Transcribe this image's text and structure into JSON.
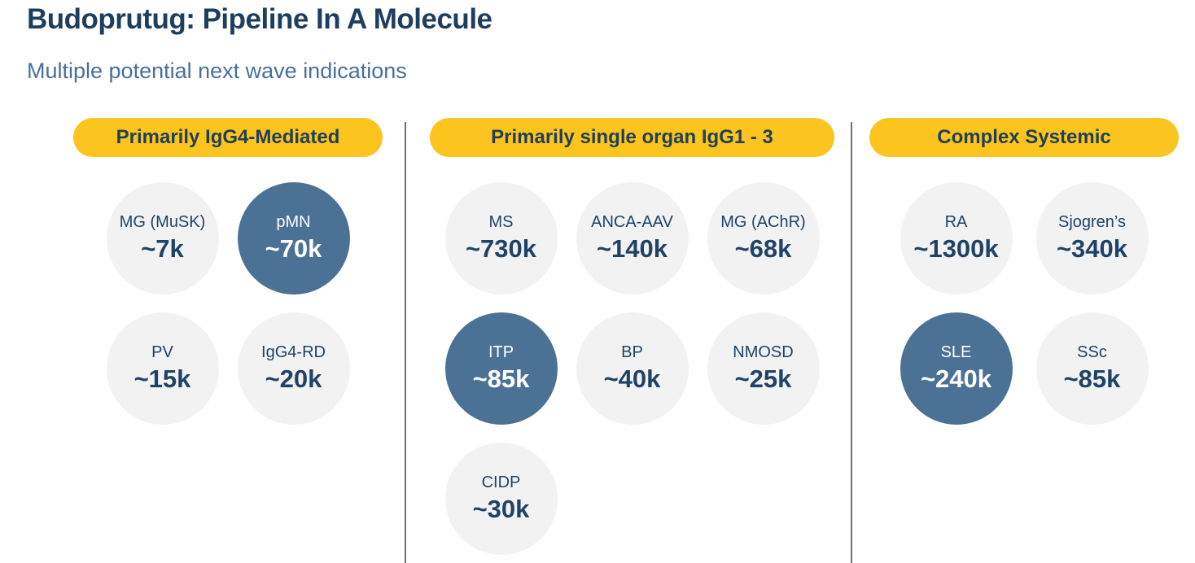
{
  "slide": {
    "title": "Budoprutug: Pipeline In A Molecule",
    "subtitle": "Multiple potential next wave indications"
  },
  "colors": {
    "title_navy": "#1e3e5f",
    "subtitle_blue": "#46719a",
    "header_pill_yellow": "#fcc41e",
    "header_pill_text": "#1f4057",
    "circle_gray": "#f2f2f2",
    "circle_highlight_blue": "#4b7294",
    "circle_text_navy": "#1f4366",
    "circle_text_on_blue": "#ffffff",
    "divider_gray": "#707070"
  },
  "columns": [
    {
      "header": "Primarily IgG4-Mediated",
      "items": [
        {
          "label": "MG (MuSK)",
          "value": "~7k",
          "highlighted": false
        },
        {
          "label": "pMN",
          "value": "~70k",
          "highlighted": true
        },
        {
          "label": "PV",
          "value": "~15k",
          "highlighted": false
        },
        {
          "label": "IgG4-RD",
          "value": "~20k",
          "highlighted": false
        }
      ]
    },
    {
      "header": "Primarily single organ IgG1 - 3",
      "items": [
        {
          "label": "MS",
          "value": "~730k",
          "highlighted": false
        },
        {
          "label": "ANCA-AAV",
          "value": "~140k",
          "highlighted": false
        },
        {
          "label": "MG (AChR)",
          "value": "~68k",
          "highlighted": false
        },
        {
          "label": "ITP",
          "value": "~85k",
          "highlighted": true
        },
        {
          "label": "BP",
          "value": "~40k",
          "highlighted": false
        },
        {
          "label": "NMOSD",
          "value": "~25k",
          "highlighted": false
        },
        {
          "label": "CIDP",
          "value": "~30k",
          "highlighted": false
        }
      ]
    },
    {
      "header": "Complex Systemic",
      "items": [
        {
          "label": "RA",
          "value": "~1300k",
          "highlighted": false
        },
        {
          "label": "Sjogren’s",
          "value": "~340k",
          "highlighted": false
        },
        {
          "label": "SLE",
          "value": "~240k",
          "highlighted": true
        },
        {
          "label": "SSc",
          "value": "~85k",
          "highlighted": false
        }
      ]
    }
  ]
}
